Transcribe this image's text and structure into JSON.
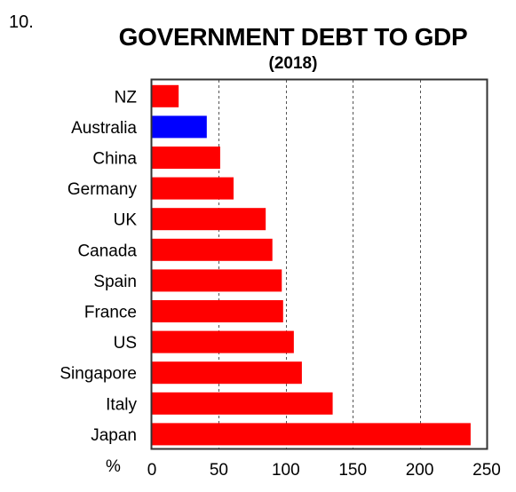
{
  "figure": {
    "number": "10.",
    "title": "GOVERNMENT DEBT TO GDP",
    "subtitle": "(2018)",
    "unit": "%"
  },
  "colors": {
    "default_bar": "#ff0000",
    "highlight_bar": "#0000ff",
    "grid": "#555555",
    "axis": "#333333"
  },
  "chart_data": {
    "type": "bar",
    "orientation": "horizontal",
    "title": "GOVERNMENT DEBT TO GDP",
    "subtitle": "(2018)",
    "xlabel": "%",
    "ylabel": "",
    "xlim": [
      0,
      250
    ],
    "xticks": [
      0,
      50,
      100,
      150,
      200,
      250
    ],
    "grid": "vertical dashed lines at 50, 100, 150, 200",
    "categories": [
      "NZ",
      "Australia",
      "China",
      "Germany",
      "UK",
      "Canada",
      "Spain",
      "France",
      "US",
      "Singapore",
      "Italy",
      "Japan"
    ],
    "values": [
      20,
      41,
      51,
      61,
      85,
      90,
      97,
      98,
      106,
      112,
      135,
      238
    ],
    "highlight": "Australia"
  }
}
